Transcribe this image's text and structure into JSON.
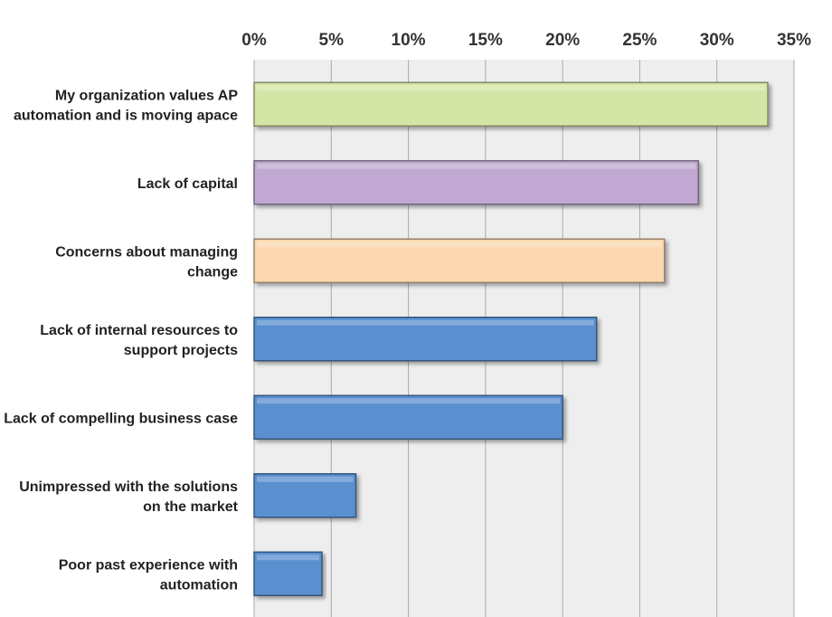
{
  "chart_data": {
    "type": "bar",
    "orientation": "horizontal",
    "title": "",
    "xlabel": "",
    "ylabel": "",
    "xlim": [
      0,
      35
    ],
    "axis_position": "top",
    "grid": true,
    "ticks": [
      "0%",
      "5%",
      "10%",
      "15%",
      "20%",
      "25%",
      "30%",
      "35%"
    ],
    "tick_values": [
      0,
      5,
      10,
      15,
      20,
      25,
      30,
      35
    ],
    "categories": [
      [
        "My organization values AP",
        "automation and is moving apace"
      ],
      [
        "Lack of capital"
      ],
      [
        "Concerns about managing",
        "change"
      ],
      [
        "Lack of internal resources to",
        "support projects"
      ],
      [
        "Lack of compelling business case"
      ],
      [
        "Unimpressed with the solutions",
        "on the market"
      ],
      [
        "Poor past experience with",
        "automation"
      ]
    ],
    "values": [
      33.3,
      28.8,
      26.6,
      22.2,
      20.0,
      6.6,
      4.4
    ],
    "colors": [
      "#d4e6a5",
      "#c0a8d2",
      "#fbd8b0",
      "#5a8fd0",
      "#5a8fd0",
      "#5a8fd0",
      "#5a8fd0"
    ],
    "plot_background": "#eeeeee",
    "gridline_color": "#aaaaaa"
  }
}
